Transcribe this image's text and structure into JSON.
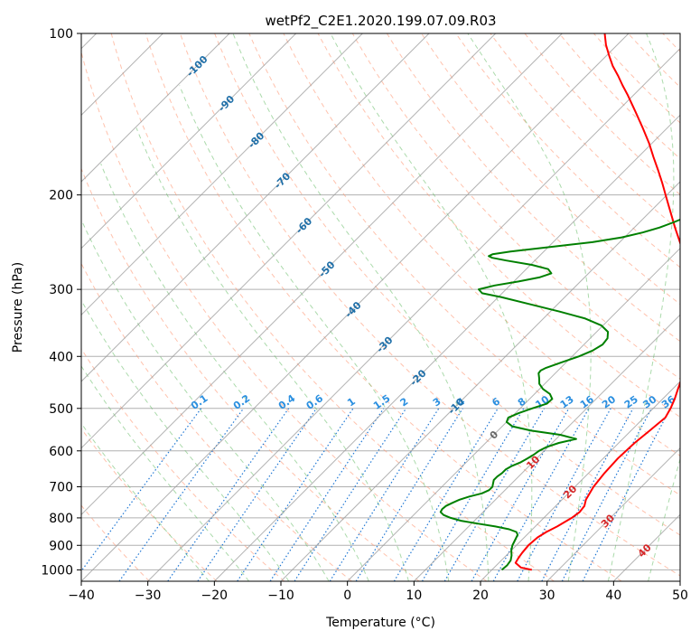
{
  "chart_data": {
    "type": "line",
    "title": "wetPf2_C2E1.2020.199.07.09.R03",
    "xlabel": "Temperature (°C)",
    "ylabel": "Pressure (hPa)",
    "xlim": [
      -40,
      50
    ],
    "ylim": [
      1050,
      100
    ],
    "y_scale": "log",
    "x_ticks": [
      -40,
      -30,
      -20,
      -10,
      0,
      10,
      20,
      30,
      40,
      50
    ],
    "x_tick_labels": [
      "−40",
      "−30",
      "−20",
      "−10",
      "0",
      "10",
      "20",
      "30",
      "40",
      "50"
    ],
    "y_ticks": [
      100,
      200,
      300,
      400,
      500,
      600,
      700,
      800,
      900,
      1000
    ],
    "y_tick_labels": [
      "100",
      "200",
      "300",
      "400",
      "500",
      "600",
      "700",
      "800",
      "900",
      "1000"
    ],
    "grid": true,
    "colors": {
      "temperature": "#ff0000",
      "dewpoint": "#008000",
      "dry_adiabat": "#ff9977",
      "moist_adiabat": "#66bb66",
      "mixing_ratio": "#1f77d4",
      "isotherm": "#999999",
      "isotherm_label": "#1f6fa8",
      "mixing_label": "#2a8fe0",
      "red_label": "#d62728"
    },
    "series": [
      {
        "role": "temperature",
        "points": [
          [
            1000,
            26.0
          ],
          [
            990,
            24.0
          ],
          [
            970,
            22.5
          ],
          [
            950,
            22.2
          ],
          [
            930,
            22.0
          ],
          [
            900,
            21.8
          ],
          [
            870,
            22.0
          ],
          [
            850,
            22.5
          ],
          [
            830,
            23.3
          ],
          [
            800,
            24.2
          ],
          [
            780,
            24.5
          ],
          [
            760,
            24.3
          ],
          [
            740,
            23.6
          ],
          [
            700,
            22.8
          ],
          [
            660,
            22.4
          ],
          [
            620,
            22.2
          ],
          [
            580,
            22.4
          ],
          [
            550,
            22.8
          ],
          [
            520,
            23.2
          ],
          [
            500,
            22.6
          ],
          [
            480,
            21.8
          ],
          [
            460,
            20.8
          ],
          [
            440,
            19.8
          ],
          [
            420,
            18.8
          ],
          [
            400,
            17.3
          ],
          [
            380,
            15.7
          ],
          [
            360,
            13.7
          ],
          [
            340,
            11.6
          ],
          [
            320,
            9.4
          ],
          [
            300,
            7.0
          ],
          [
            280,
            4.3
          ],
          [
            260,
            1.6
          ],
          [
            250,
            0.0
          ],
          [
            240,
            -1.9
          ],
          [
            230,
            -3.9
          ],
          [
            220,
            -5.9
          ],
          [
            210,
            -8.0
          ],
          [
            200,
            -10.2
          ],
          [
            190,
            -12.5
          ],
          [
            180,
            -15.0
          ],
          [
            170,
            -17.7
          ],
          [
            160,
            -20.5
          ],
          [
            150,
            -23.7
          ],
          [
            140,
            -27.2
          ],
          [
            130,
            -31.0
          ],
          [
            125,
            -33.1
          ],
          [
            120,
            -35.2
          ],
          [
            115,
            -37.5
          ],
          [
            110,
            -39.6
          ],
          [
            105,
            -41.7
          ],
          [
            100,
            -43.6
          ]
        ]
      },
      {
        "role": "dewpoint",
        "points": [
          [
            1000,
            21.5
          ],
          [
            980,
            21.6
          ],
          [
            960,
            21.4
          ],
          [
            940,
            20.8
          ],
          [
            920,
            20.0
          ],
          [
            900,
            19.4
          ],
          [
            880,
            19.0
          ],
          [
            860,
            18.6
          ],
          [
            850,
            18.0
          ],
          [
            840,
            16.5
          ],
          [
            830,
            14.0
          ],
          [
            820,
            11.0
          ],
          [
            810,
            8.0
          ],
          [
            800,
            6.0
          ],
          [
            790,
            4.5
          ],
          [
            780,
            3.6
          ],
          [
            770,
            3.4
          ],
          [
            760,
            3.5
          ],
          [
            750,
            4.0
          ],
          [
            740,
            4.6
          ],
          [
            730,
            5.6
          ],
          [
            720,
            7.0
          ],
          [
            710,
            7.6
          ],
          [
            700,
            7.6
          ],
          [
            690,
            7.2
          ],
          [
            680,
            6.8
          ],
          [
            670,
            6.8
          ],
          [
            660,
            7.0
          ],
          [
            650,
            7.0
          ],
          [
            640,
            7.4
          ],
          [
            630,
            8.2
          ],
          [
            620,
            8.6
          ],
          [
            610,
            9.0
          ],
          [
            600,
            9.2
          ],
          [
            590,
            9.8
          ],
          [
            580,
            11.0
          ],
          [
            570,
            13.0
          ],
          [
            560,
            10.0
          ],
          [
            550,
            5.0
          ],
          [
            540,
            1.5
          ],
          [
            530,
            0.0
          ],
          [
            520,
            -0.4
          ],
          [
            510,
            0.5
          ],
          [
            500,
            1.8
          ],
          [
            490,
            3.3
          ],
          [
            480,
            3.4
          ],
          [
            470,
            2.3
          ],
          [
            460,
            0.5
          ],
          [
            450,
            -0.8
          ],
          [
            440,
            -1.6
          ],
          [
            430,
            -2.5
          ],
          [
            425,
            -2.6
          ],
          [
            420,
            -2.2
          ],
          [
            410,
            -0.6
          ],
          [
            400,
            1.0
          ],
          [
            390,
            2.2
          ],
          [
            380,
            2.8
          ],
          [
            370,
            2.6
          ],
          [
            360,
            1.7
          ],
          [
            350,
            -0.3
          ],
          [
            340,
            -3.7
          ],
          [
            330,
            -8.6
          ],
          [
            320,
            -14.0
          ],
          [
            310,
            -19.6
          ],
          [
            305,
            -23.0
          ],
          [
            300,
            -24.1
          ],
          [
            295,
            -22.3
          ],
          [
            290,
            -19.3
          ],
          [
            285,
            -16.8
          ],
          [
            280,
            -15.6
          ],
          [
            275,
            -16.7
          ],
          [
            270,
            -19.8
          ],
          [
            265,
            -24.3
          ],
          [
            262,
            -26.8
          ],
          [
            260,
            -27.6
          ],
          [
            258,
            -27.3
          ],
          [
            255,
            -25.0
          ],
          [
            250,
            -19.6
          ],
          [
            245,
            -14.1
          ],
          [
            240,
            -10.4
          ],
          [
            235,
            -8.0
          ],
          [
            230,
            -6.2
          ],
          [
            225,
            -4.9
          ],
          [
            220,
            -3.8
          ],
          [
            210,
            -2.6
          ],
          [
            200,
            -2.0
          ],
          [
            190,
            -1.6
          ],
          [
            180,
            -1.4
          ],
          [
            170,
            -1.6
          ],
          [
            160,
            -2.2
          ],
          [
            150,
            -3.9
          ],
          [
            140,
            -6.8
          ],
          [
            135,
            -8.5
          ],
          [
            130,
            -9.6
          ],
          [
            125,
            -10.0
          ],
          [
            120,
            -9.8
          ],
          [
            115,
            -9.7
          ],
          [
            110,
            -10.4
          ],
          [
            105,
            -11.7
          ],
          [
            100,
            -12.1
          ]
        ]
      }
    ],
    "isotherm_labels": [
      "-100",
      "-90",
      "-80",
      "-70",
      "-60",
      "-50",
      "-40",
      "-30",
      "-20",
      "-10",
      "0"
    ],
    "isotherm_label_values": [
      -100,
      -90,
      -80,
      -70,
      -60,
      -50,
      -40,
      -30,
      -20,
      -10,
      0
    ],
    "mixing_ratio_labels": [
      "0.1",
      "0.2",
      "0.4",
      "0.6",
      "1",
      "1.5",
      "2",
      "3",
      "4",
      "6",
      "8",
      "10",
      "13",
      "16",
      "20",
      "25",
      "30",
      "36"
    ],
    "mixing_ratio_values": [
      0.1,
      0.2,
      0.4,
      0.6,
      1,
      1.5,
      2,
      3,
      4,
      6,
      8,
      10,
      13,
      16,
      20,
      25,
      30,
      36
    ],
    "red_isotherm_labels": [
      "10",
      "20",
      "30",
      "40"
    ],
    "red_isotherm_values": [
      10,
      20,
      30,
      40
    ]
  }
}
